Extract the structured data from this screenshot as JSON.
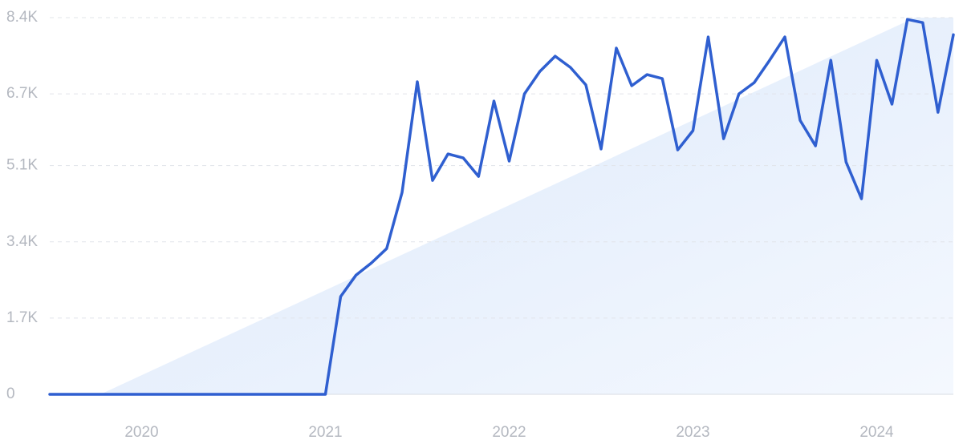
{
  "chart_data": {
    "type": "line",
    "x": [
      2019.5,
      2019.583,
      2019.667,
      2019.75,
      2019.833,
      2019.917,
      2020,
      2020.083,
      2020.167,
      2020.25,
      2020.333,
      2020.417,
      2020.5,
      2020.583,
      2020.667,
      2020.75,
      2020.833,
      2020.917,
      2021,
      2021.083,
      2021.167,
      2021.25,
      2021.333,
      2021.417,
      2021.5,
      2021.583,
      2021.667,
      2021.75,
      2021.833,
      2021.917,
      2022,
      2022.083,
      2022.167,
      2022.25,
      2022.333,
      2022.417,
      2022.5,
      2022.583,
      2022.667,
      2022.75,
      2022.833,
      2022.917,
      2023,
      2023.083,
      2023.167,
      2023.25,
      2023.333,
      2023.417,
      2023.5,
      2023.583,
      2023.667,
      2023.75,
      2023.833,
      2023.917,
      2024,
      2024.083,
      2024.167,
      2024.25,
      2024.333,
      2024.417
    ],
    "series": [
      {
        "color": "#2f5fd0",
        "values": [
          0,
          0,
          0,
          0,
          0,
          0,
          0,
          0,
          0,
          0,
          0,
          0,
          0,
          0,
          0,
          0,
          0,
          0,
          0,
          2180,
          2660,
          2930,
          3250,
          4500,
          6970,
          4770,
          5360,
          5270,
          4860,
          6540,
          5200,
          6700,
          7200,
          7540,
          7290,
          6900,
          5470,
          7720,
          6880,
          7130,
          7040,
          5450,
          5880,
          7970,
          5700,
          6700,
          6950,
          7450,
          7970,
          6110,
          5540,
          7450,
          5180,
          4360,
          7450,
          6470,
          8360,
          8290,
          6290,
          8020
        ]
      }
    ],
    "xlim": [
      2019.5,
      2024.417
    ],
    "xticks": [
      2020,
      2021,
      2022,
      2023,
      2024
    ],
    "ylim": [
      0,
      8400
    ],
    "yticks": [
      0,
      {
        "value": 1700,
        "label": "1.7K"
      },
      {
        "value": 3400,
        "label": "3.4K"
      },
      {
        "value": 5100,
        "label": "5.1K"
      },
      {
        "value": 6700,
        "label": "6.7K"
      },
      {
        "value": 8400,
        "label": "8.4K"
      }
    ],
    "grid": true
  }
}
